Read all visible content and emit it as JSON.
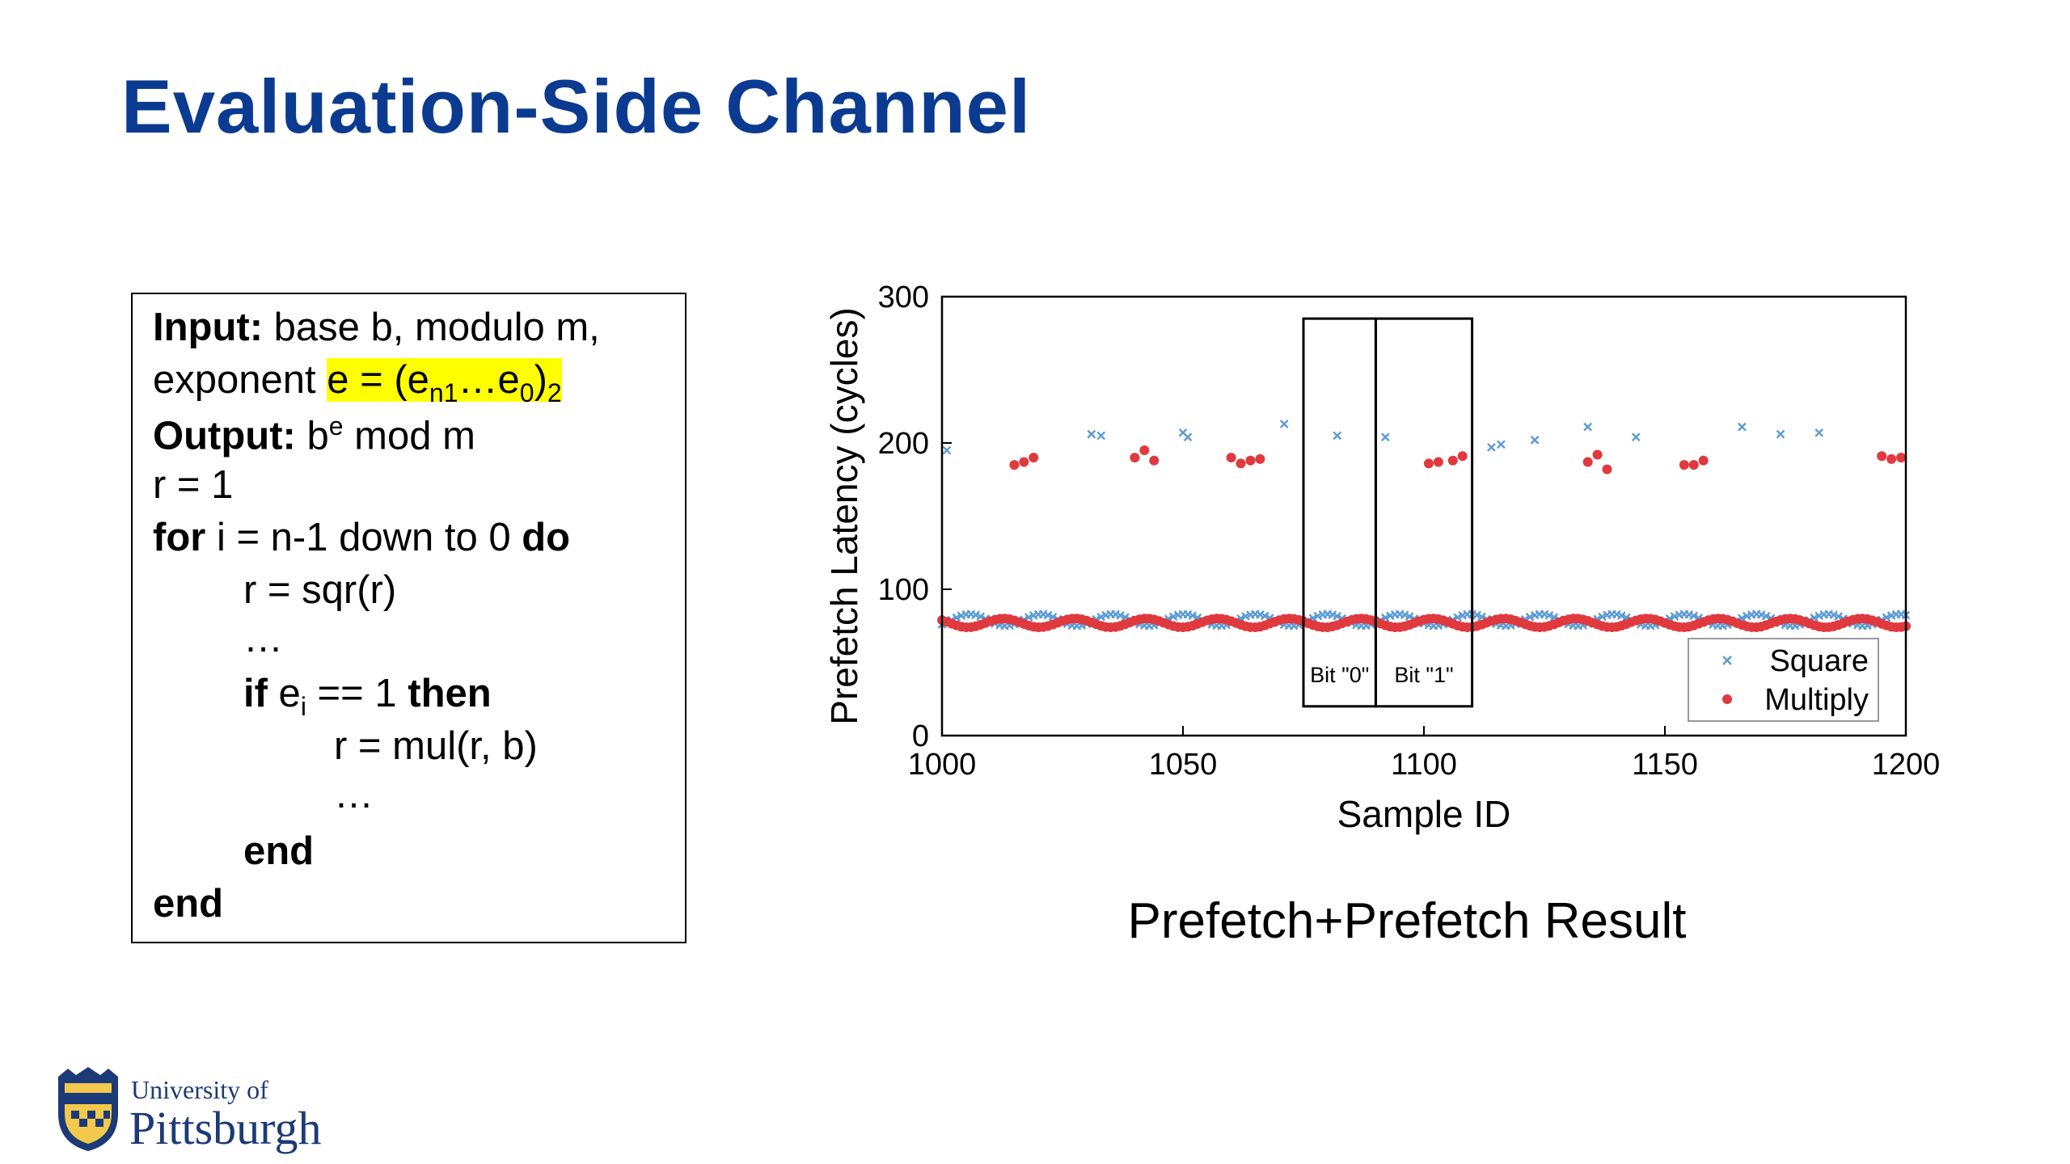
{
  "slide": {
    "title": "Evaluation-Side Channel",
    "caption": "Prefetch+Prefetch Result"
  },
  "algorithm": {
    "input_kw": "Input:",
    "input_text": " base b, modulo m,",
    "exponent_prefix": "exponent ",
    "exponent_hl_a": "e = (e",
    "exponent_hl_sub1": "n1",
    "exponent_hl_b": "…e",
    "exponent_hl_sub2": "0",
    "exponent_hl_c": ")",
    "exponent_hl_sub3": "2",
    "output_kw": "Output:",
    "output_b": " b",
    "output_sup": "e",
    "output_rest": " mod m",
    "init": "r = 1",
    "for_kw": "for",
    "for_text": " i = n-1 down to 0 ",
    "do_kw": "do",
    "sqr": "r = sqr(r)",
    "ellipsis": "…",
    "if_kw": "if",
    "if_e": " e",
    "if_sub": "i",
    "if_text": " == 1 ",
    "then_kw": "then",
    "mul": "r = mul(r, b)",
    "end_kw": "end"
  },
  "logo": {
    "line1": "University of",
    "line2": "Pittsburgh"
  },
  "chart_data": {
    "type": "scatter",
    "title": "",
    "xlabel": "Sample ID",
    "ylabel": "Prefetch Latency (cycles)",
    "xlim": [
      1000,
      1200
    ],
    "ylim": [
      0,
      300
    ],
    "xticks": [
      1000,
      1050,
      1100,
      1150,
      1200
    ],
    "yticks": [
      0,
      100,
      200,
      300
    ],
    "legend_position": "bottom-right",
    "series": [
      {
        "name": "Square",
        "marker": "x",
        "color": "#5b9bd5",
        "high_points": [
          [
            1001,
            195
          ],
          [
            1031,
            206
          ],
          [
            1033,
            205
          ],
          [
            1050,
            207
          ],
          [
            1051,
            204
          ],
          [
            1071,
            213
          ],
          [
            1082,
            205
          ],
          [
            1092,
            204
          ],
          [
            1114,
            197
          ],
          [
            1116,
            199
          ],
          [
            1123,
            202
          ],
          [
            1134,
            211
          ],
          [
            1144,
            204
          ],
          [
            1166,
            211
          ],
          [
            1174,
            206
          ],
          [
            1182,
            207
          ]
        ],
        "baseline": {
          "y_center": 79,
          "spread": 4,
          "x_step": 1
        }
      },
      {
        "name": "Multiply",
        "marker": "dot",
        "color": "#e0393e",
        "high_points": [
          [
            1015,
            185
          ],
          [
            1017,
            187
          ],
          [
            1019,
            190
          ],
          [
            1040,
            190
          ],
          [
            1042,
            195
          ],
          [
            1044,
            188
          ],
          [
            1060,
            190
          ],
          [
            1062,
            186
          ],
          [
            1064,
            188
          ],
          [
            1066,
            189
          ],
          [
            1101,
            186
          ],
          [
            1103,
            187
          ],
          [
            1106,
            188
          ],
          [
            1108,
            191
          ],
          [
            1134,
            187
          ],
          [
            1136,
            192
          ],
          [
            1138,
            182
          ],
          [
            1154,
            185
          ],
          [
            1156,
            185
          ],
          [
            1158,
            188
          ],
          [
            1195,
            191
          ],
          [
            1197,
            189
          ],
          [
            1199,
            190
          ]
        ],
        "baseline": {
          "y_center": 77,
          "spread": 3,
          "x_step": 1
        }
      }
    ],
    "annotations": [
      {
        "label": "Bit \"0\"",
        "x_range": [
          1075,
          1090
        ],
        "y_range": [
          20,
          285
        ]
      },
      {
        "label": "Bit \"1\"",
        "x_range": [
          1090,
          1110
        ],
        "y_range": [
          20,
          285
        ]
      }
    ]
  }
}
